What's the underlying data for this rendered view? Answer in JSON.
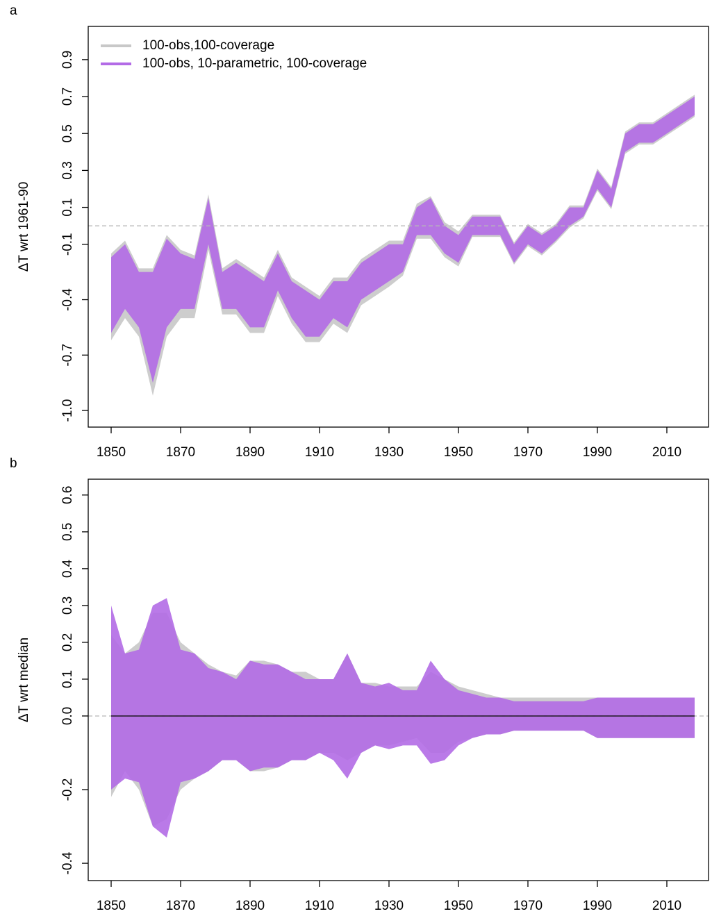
{
  "chart_data": [
    {
      "type": "band",
      "label": "a",
      "y_label": "ΔT wrt 1961-90",
      "legend": "top-left",
      "grid": false,
      "hline": 0,
      "x": [
        1850,
        1854,
        1858,
        1862,
        1866,
        1870,
        1874,
        1878,
        1882,
        1886,
        1890,
        1894,
        1898,
        1902,
        1906,
        1910,
        1914,
        1918,
        1922,
        1926,
        1930,
        1934,
        1938,
        1942,
        1946,
        1950,
        1954,
        1958,
        1962,
        1966,
        1970,
        1974,
        1978,
        1982,
        1986,
        1990,
        1994,
        1998,
        2002,
        2006,
        2010,
        2014,
        2018
      ],
      "xlim": [
        1843.4,
        2022.0
      ],
      "xticks": [
        1850,
        1870,
        1890,
        1910,
        1930,
        1950,
        1970,
        1990,
        2010
      ],
      "ylim": [
        -1.09,
        1.08
      ],
      "yticks": [
        {
          "value": -1,
          "label": "-1.0"
        },
        -0.7,
        -0.4,
        -0.1,
        0.1,
        0.3,
        0.5,
        0.7,
        0.9
      ],
      "series": [
        {
          "name": "100-obs,100-coverage",
          "color": "#c8c8c8",
          "upper": [
            -0.15,
            -0.08,
            -0.23,
            -0.23,
            -0.05,
            -0.13,
            -0.16,
            0.17,
            -0.23,
            -0.18,
            -0.23,
            -0.28,
            -0.13,
            -0.28,
            -0.33,
            -0.38,
            -0.28,
            -0.28,
            -0.18,
            -0.13,
            -0.08,
            -0.08,
            0.12,
            0.16,
            0.02,
            -0.03,
            0.06,
            0.06,
            0.06,
            -0.09,
            0.01,
            -0.04,
            0.01,
            0.11,
            0.11,
            0.31,
            0.21,
            0.51,
            0.56,
            0.56,
            0.61,
            0.66,
            0.71
          ],
          "lower": [
            -0.62,
            -0.5,
            -0.6,
            -0.92,
            -0.6,
            -0.5,
            -0.5,
            -0.13,
            -0.48,
            -0.48,
            -0.58,
            -0.58,
            -0.38,
            -0.53,
            -0.63,
            -0.63,
            -0.53,
            -0.58,
            -0.43,
            -0.38,
            -0.33,
            -0.27,
            -0.07,
            -0.07,
            -0.17,
            -0.22,
            -0.06,
            -0.06,
            -0.06,
            -0.21,
            -0.11,
            -0.16,
            -0.09,
            -0.01,
            0.04,
            0.19,
            0.09,
            0.39,
            0.44,
            0.44,
            0.49,
            0.54,
            0.59
          ]
        },
        {
          "name": "100-obs, 10-parametric, 100-coverage",
          "color": "#b36be6",
          "upper": [
            -0.17,
            -0.1,
            -0.25,
            -0.25,
            -0.07,
            -0.15,
            -0.18,
            0.15,
            -0.25,
            -0.2,
            -0.25,
            -0.3,
            -0.15,
            -0.3,
            -0.35,
            -0.4,
            -0.3,
            -0.3,
            -0.2,
            -0.15,
            -0.1,
            -0.1,
            0.1,
            0.15,
            0,
            -0.05,
            0.05,
            0.05,
            0.05,
            -0.1,
            0,
            -0.05,
            0,
            0.1,
            0.1,
            0.3,
            0.2,
            0.5,
            0.55,
            0.55,
            0.6,
            0.65,
            0.7
          ],
          "lower": [
            -0.58,
            -0.45,
            -0.55,
            -0.85,
            -0.55,
            -0.45,
            -0.45,
            -0.1,
            -0.45,
            -0.45,
            -0.55,
            -0.55,
            -0.35,
            -0.5,
            -0.6,
            -0.6,
            -0.5,
            -0.55,
            -0.4,
            -0.35,
            -0.3,
            -0.25,
            -0.05,
            -0.05,
            -0.15,
            -0.2,
            -0.05,
            -0.05,
            -0.05,
            -0.2,
            -0.1,
            -0.15,
            -0.08,
            0,
            0.05,
            0.2,
            0.1,
            0.4,
            0.45,
            0.45,
            0.5,
            0.55,
            0.6
          ]
        }
      ]
    },
    {
      "type": "band",
      "label": "b",
      "y_label": "ΔT wrt median",
      "grid": false,
      "hline": 0,
      "x": [
        1850,
        1854,
        1858,
        1862,
        1866,
        1870,
        1874,
        1878,
        1882,
        1886,
        1890,
        1894,
        1898,
        1902,
        1906,
        1910,
        1914,
        1918,
        1922,
        1926,
        1930,
        1934,
        1938,
        1942,
        1946,
        1950,
        1954,
        1958,
        1962,
        1966,
        1970,
        1974,
        1978,
        1982,
        1986,
        1990,
        1994,
        1998,
        2002,
        2006,
        2010,
        2014,
        2018
      ],
      "xlim": [
        1843.4,
        2022.0
      ],
      "xticks": [
        1850,
        1870,
        1890,
        1910,
        1930,
        1950,
        1970,
        1990,
        2010
      ],
      "ylim": [
        -0.447,
        0.643
      ],
      "yticks": [
        -0.4,
        -0.2,
        {
          "value": 0,
          "label": "0.0"
        },
        0.1,
        0.2,
        0.3,
        0.4,
        0.5,
        0.6
      ],
      "series": [
        {
          "color": "#c8c8c8",
          "upper": [
            0.22,
            0.17,
            0.2,
            0.28,
            0.28,
            0.2,
            0.17,
            0.14,
            0.12,
            0.11,
            0.15,
            0.15,
            0.14,
            0.12,
            0.12,
            0.1,
            0.1,
            0.17,
            0.09,
            0.09,
            0.08,
            0.08,
            0.08,
            0.12,
            0.1,
            0.08,
            0.07,
            0.06,
            0.05,
            0.05,
            0.05,
            0.05,
            0.05,
            0.05,
            0.05,
            0.05,
            0.05,
            0.05,
            0.05,
            0.05,
            0.05,
            0.05,
            0.05
          ],
          "lower": [
            -0.22,
            -0.15,
            -0.2,
            -0.3,
            -0.28,
            -0.2,
            -0.17,
            -0.15,
            -0.12,
            -0.12,
            -0.15,
            -0.15,
            -0.14,
            -0.12,
            -0.12,
            -0.1,
            -0.1,
            -0.12,
            -0.1,
            -0.08,
            -0.08,
            -0.07,
            -0.06,
            -0.1,
            -0.1,
            -0.07,
            -0.06,
            -0.05,
            -0.05,
            -0.04,
            -0.04,
            -0.04,
            -0.04,
            -0.04,
            -0.04,
            -0.06,
            -0.06,
            -0.06,
            -0.06,
            -0.06,
            -0.06,
            -0.06,
            -0.06
          ]
        },
        {
          "color": "#b36be6",
          "upper": [
            0.3,
            0.17,
            0.18,
            0.3,
            0.32,
            0.18,
            0.17,
            0.13,
            0.12,
            0.1,
            0.15,
            0.14,
            0.14,
            0.12,
            0.1,
            0.1,
            0.1,
            0.17,
            0.09,
            0.08,
            0.09,
            0.07,
            0.07,
            0.15,
            0.1,
            0.07,
            0.06,
            0.05,
            0.05,
            0.04,
            0.04,
            0.04,
            0.04,
            0.04,
            0.04,
            0.05,
            0.05,
            0.05,
            0.05,
            0.05,
            0.05,
            0.05,
            0.05
          ],
          "lower": [
            -0.2,
            -0.17,
            -0.18,
            -0.3,
            -0.33,
            -0.18,
            -0.17,
            -0.15,
            -0.12,
            -0.12,
            -0.15,
            -0.14,
            -0.14,
            -0.12,
            -0.12,
            -0.1,
            -0.12,
            -0.17,
            -0.1,
            -0.08,
            -0.09,
            -0.08,
            -0.08,
            -0.13,
            -0.12,
            -0.08,
            -0.06,
            -0.05,
            -0.05,
            -0.04,
            -0.04,
            -0.04,
            -0.04,
            -0.04,
            -0.04,
            -0.06,
            -0.06,
            -0.06,
            -0.06,
            -0.06,
            -0.06,
            -0.06,
            -0.06
          ]
        }
      ]
    }
  ]
}
